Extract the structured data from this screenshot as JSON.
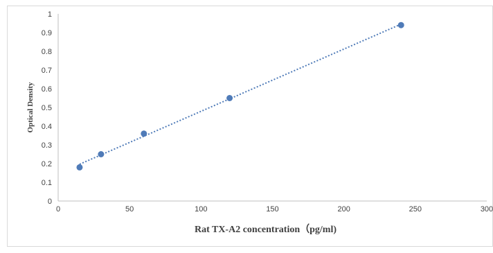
{
  "chart_data": {
    "type": "scatter",
    "xlabel": "Rat  TX-A2 concentration（pg/ml)",
    "ylabel": "Optical Density",
    "xlim": [
      0,
      300
    ],
    "ylim": [
      0,
      1
    ],
    "xticks": [
      0,
      50,
      100,
      150,
      200,
      250,
      300
    ],
    "yticks": [
      0,
      0.1,
      0.2,
      0.3,
      0.4,
      0.5,
      0.6,
      0.7,
      0.8,
      0.9,
      1
    ],
    "xtick_labels": [
      "0",
      "50",
      "100",
      "150",
      "200",
      "250",
      "300"
    ],
    "ytick_labels": [
      "0",
      "0.1",
      "0.2",
      "0.3",
      "0.4",
      "0.5",
      "0.6",
      "0.7",
      "0.8",
      "0.9",
      "1"
    ],
    "grid": false,
    "trendline": "linear, dotted",
    "series": [
      {
        "x": [
          15,
          30,
          60,
          120,
          240
        ],
        "y": [
          0.18,
          0.25,
          0.36,
          0.55,
          0.94
        ],
        "color": "#4f7bb8"
      }
    ]
  }
}
